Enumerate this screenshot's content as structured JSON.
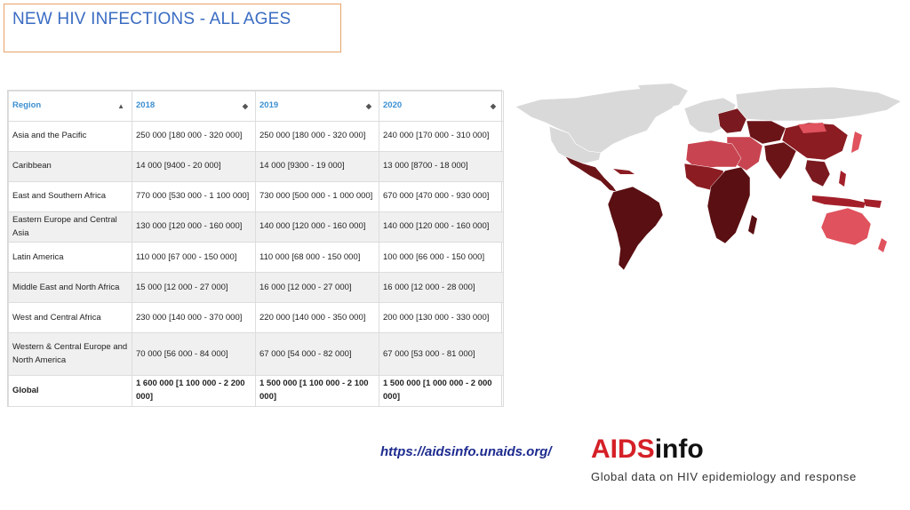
{
  "title": "NEW HIV INFECTIONS - ALL AGES",
  "table": {
    "headers": [
      "Region",
      "2018",
      "2019",
      "2020"
    ],
    "sort_icons": [
      "▲",
      "◆",
      "◆",
      "◆"
    ],
    "rows": [
      {
        "region": "Asia and the Pacific",
        "y2018": "250 000 [180 000 - 320 000]",
        "y2019": "250 000 [180 000 - 320 000]",
        "y2020": "240 000 [170 000 - 310 000]"
      },
      {
        "region": "Caribbean",
        "y2018": "14 000 [9400 - 20 000]",
        "y2019": "14 000 [9300 - 19 000]",
        "y2020": "13 000 [8700 - 18 000]"
      },
      {
        "region": "East and Southern Africa",
        "y2018": "770 000 [530 000 - 1 100 000]",
        "y2019": "730 000 [500 000 - 1 000 000]",
        "y2020": "670 000 [470 000 - 930 000]"
      },
      {
        "region": "Eastern Europe and Central Asia",
        "y2018": "130 000 [120 000 - 160 000]",
        "y2019": "140 000 [120 000 - 160 000]",
        "y2020": "140 000 [120 000 - 160 000]"
      },
      {
        "region": "Latin America",
        "y2018": "110 000 [67 000 - 150 000]",
        "y2019": "110 000 [68 000 - 150 000]",
        "y2020": "100 000 [66 000 - 150 000]"
      },
      {
        "region": "Middle East and North Africa",
        "y2018": "15 000 [12 000 - 27 000]",
        "y2019": "16 000 [12 000 - 27 000]",
        "y2020": "16 000 [12 000 - 28 000]"
      },
      {
        "region": "West and Central Africa",
        "y2018": "230 000 [140 000 - 370 000]",
        "y2019": "220 000 [140 000 - 350 000]",
        "y2020": "200 000 [130 000 - 330 000]"
      },
      {
        "region": "Western & Central Europe and North America",
        "y2018": "70 000 [56 000 - 84 000]",
        "y2019": "67 000 [54 000 - 82 000]",
        "y2020": "67 000 [53 000 - 81 000]"
      }
    ],
    "global": {
      "region": "Global",
      "y2018": "1 600 000 [1 100 000 - 2 200 000]",
      "y2019": "1 500 000 [1 100 000 - 2 100 000]",
      "y2020": "1 500 000 [1 000 000 - 2 000 000]"
    }
  },
  "footer": {
    "url": "https://aidsinfo.unaids.org/",
    "logo_red": "AIDS",
    "logo_black": "info",
    "tagline": "Global data on HIV epidemiology and response"
  },
  "colors": {
    "title": "#3a6cc2",
    "header_text": "#3b8fd1",
    "dark_red": "#5a0f12",
    "mid_red": "#a3202a",
    "light_red": "#e0525d",
    "grey": "#d9d9d9",
    "logo_red": "#d52027"
  }
}
